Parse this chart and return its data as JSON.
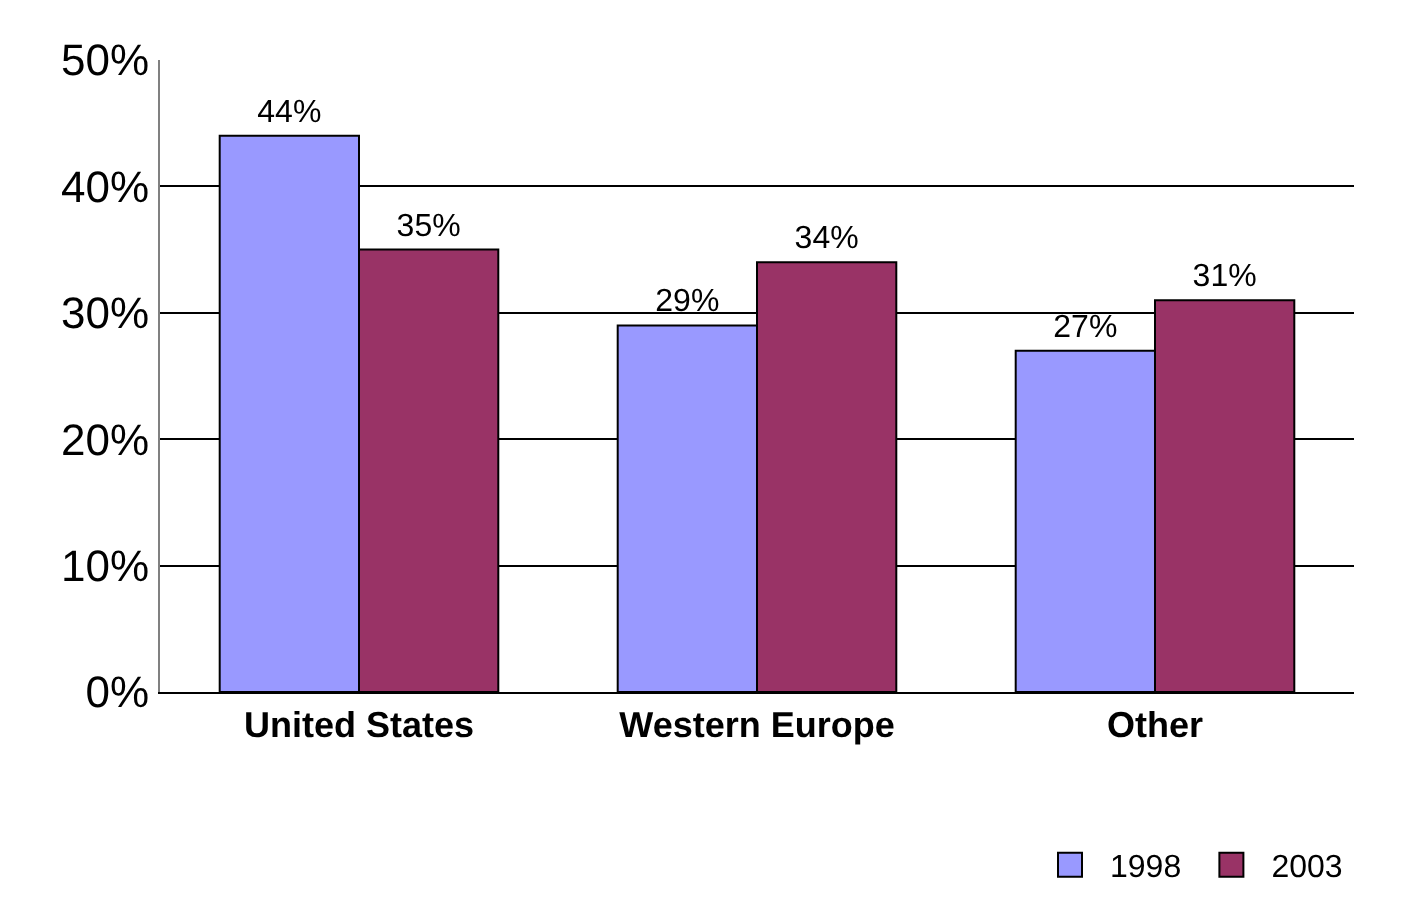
{
  "chart_data": {
    "type": "bar",
    "categories": [
      "United States",
      "Western Europe",
      "Other"
    ],
    "series": [
      {
        "name": "1998",
        "color": "#9999ff",
        "values": [
          44,
          29,
          27
        ],
        "value_labels": [
          "44%",
          "29%",
          "27%"
        ]
      },
      {
        "name": "2003",
        "color": "#993366",
        "values": [
          35,
          34,
          31
        ],
        "value_labels": [
          "35%",
          "34%",
          "31%"
        ]
      }
    ],
    "ylim": [
      0,
      50
    ],
    "yticks": [
      {
        "value": 0,
        "label": "0%"
      },
      {
        "value": 10,
        "label": "10%"
      },
      {
        "value": 20,
        "label": "20%"
      },
      {
        "value": 30,
        "label": "30%"
      },
      {
        "value": 40,
        "label": "40%"
      },
      {
        "value": 50,
        "label": "50%"
      }
    ],
    "grid": "y",
    "legend": "bottom right"
  }
}
